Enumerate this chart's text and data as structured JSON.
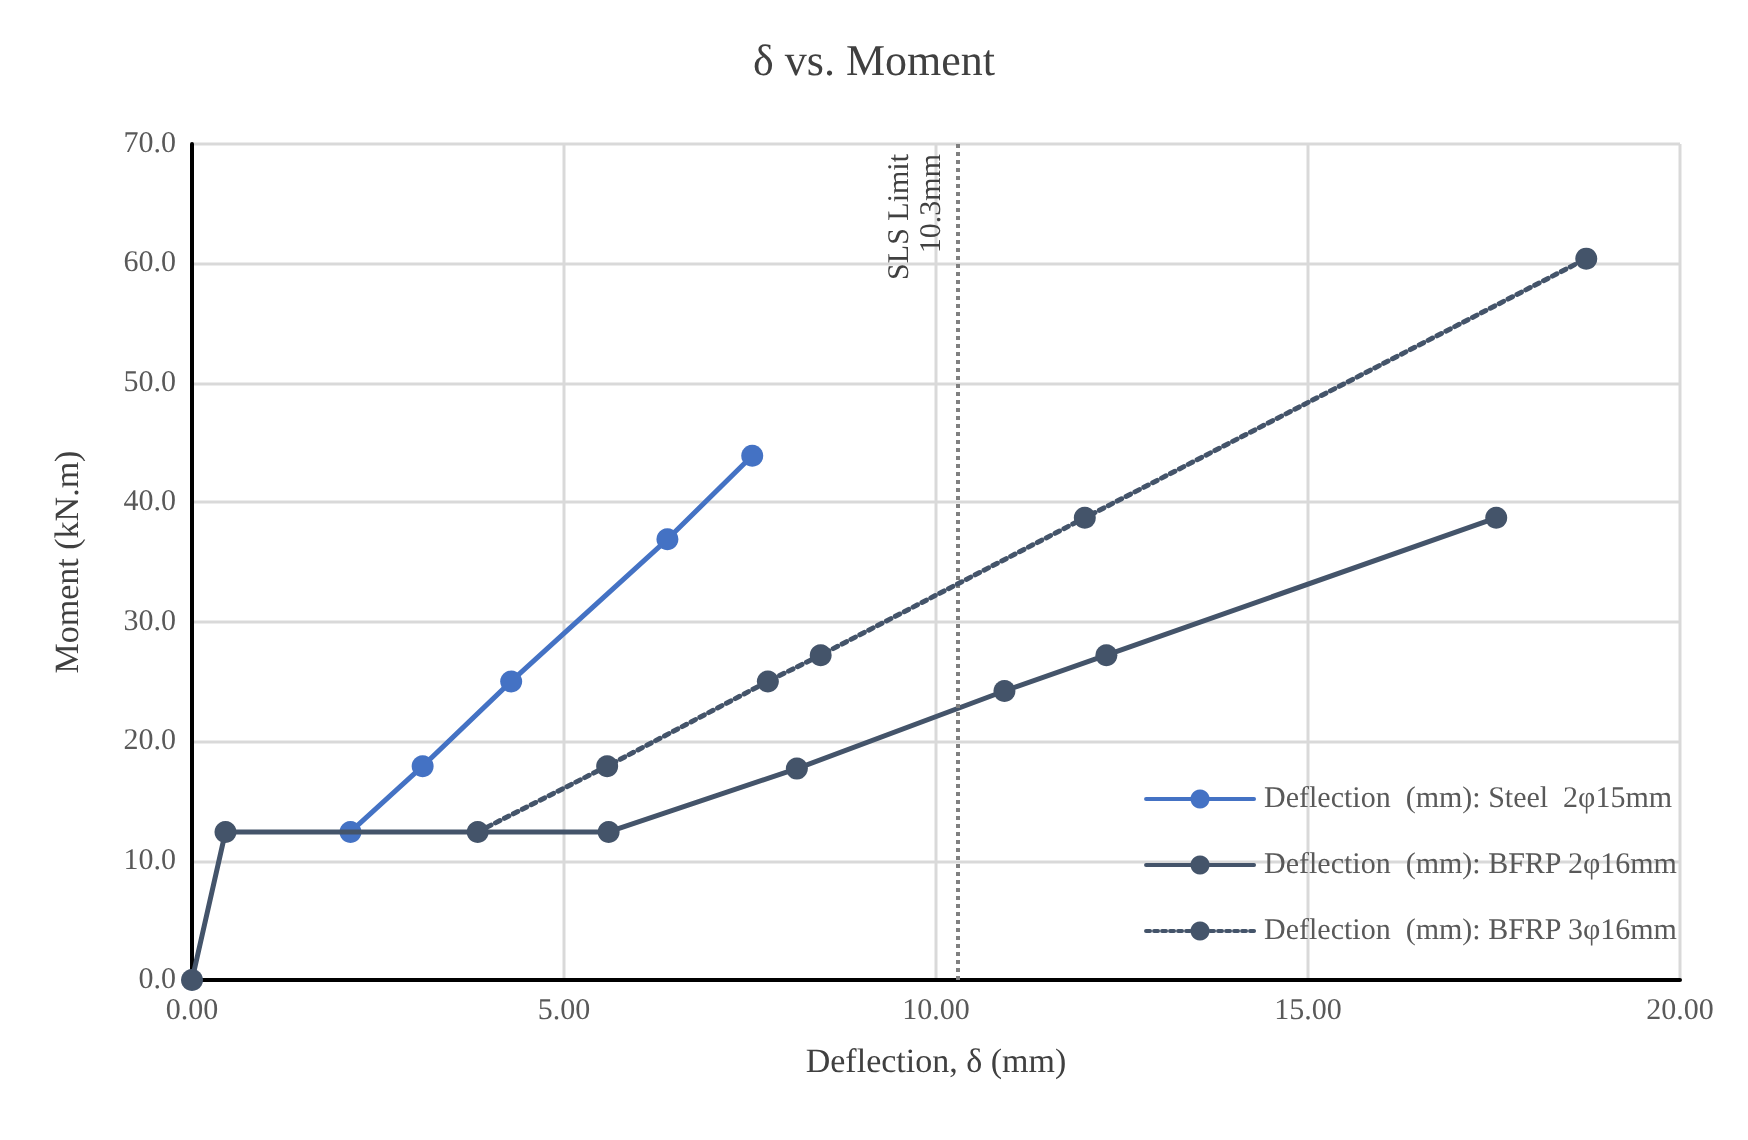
{
  "chart_data": {
    "type": "line",
    "title": "δ vs. Moment",
    "xlabel": "Deflection, δ (mm)",
    "ylabel": "Moment (kN.m)",
    "xlim": [
      0,
      20
    ],
    "xticks": [
      {
        "value": 0,
        "label": "0.00"
      },
      {
        "value": 5,
        "label": "5.00"
      },
      {
        "value": 10,
        "label": "10.00"
      },
      {
        "value": 15,
        "label": "15.00"
      },
      {
        "value": 20,
        "label": "20.00"
      }
    ],
    "ylim": [
      0,
      70
    ],
    "yticks": [
      {
        "value": 0,
        "label": "0.0"
      },
      {
        "value": 10,
        "label": "10.0"
      },
      {
        "value": 20,
        "label": "20.0"
      },
      {
        "value": 30,
        "label": "30.0"
      },
      {
        "value": 40,
        "label": "40.0"
      },
      {
        "value": 50,
        "label": "50.0"
      },
      {
        "value": 60,
        "label": "60.0"
      },
      {
        "value": 70,
        "label": "70.0"
      }
    ],
    "grid": true,
    "legend": "bottom right",
    "marker": "circle",
    "series": [
      {
        "name": "Deflection  (mm): Steel  2φ15mm",
        "color": "#4472c4",
        "line_style": "solid",
        "x": [
          2.13,
          3.1,
          4.29,
          6.39,
          7.53
        ],
        "values": [
          12.4,
          17.9,
          25.0,
          36.9,
          43.9
        ]
      },
      {
        "name": "Deflection  (mm): BFRP 2φ16mm",
        "color": "#44546a",
        "line_style": "solid",
        "x": [
          0,
          0.45,
          5.6,
          8.13,
          10.92,
          12.29,
          17.53
        ],
        "values": [
          0,
          12.4,
          12.4,
          17.7,
          24.2,
          27.2,
          38.7
        ]
      },
      {
        "name": "Deflection  (mm): BFRP 3φ16mm",
        "color": "#44546a",
        "line_style": "dotted",
        "x": [
          3.84,
          5.58,
          7.74,
          8.45,
          12.0,
          18.74
        ],
        "values": [
          12.4,
          17.9,
          25.0,
          27.2,
          38.7,
          60.4
        ]
      }
    ],
    "ref_lines": [
      {
        "axis": "x",
        "value": 10.3,
        "label": "SLS Limit\n10.3mm",
        "color": "#808080",
        "line_style": "dotted"
      }
    ]
  }
}
